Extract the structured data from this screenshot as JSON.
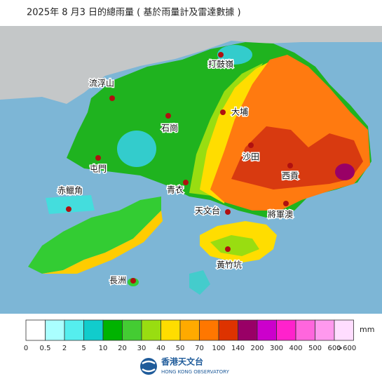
{
  "title": "2025年 8 月3 日的總雨量 ( 基於雨量計及雷達數據 )",
  "stations": [
    "打鼓嶺",
    "流浮山",
    "大埔",
    "石崗",
    "沙田",
    "西貢",
    "屯門",
    "赤鱲角",
    "青衣",
    "天文台",
    "將軍澳",
    "黃竹坑",
    "長洲"
  ],
  "legend": {
    "unit": "mm",
    "ticks": [
      0,
      0.5,
      2,
      5,
      10,
      20,
      30,
      40,
      50,
      70,
      100,
      140,
      200,
      300,
      400,
      500,
      600,
      ">600"
    ],
    "colors": [
      "#ffffff",
      "#aaffff",
      "#55eeee",
      "#11cccc",
      "#00b300",
      "#44cc33",
      "#99dd11",
      "#ffdd00",
      "#ffaa00",
      "#ff7700",
      "#dd3300",
      "#990066",
      "#cc00cc",
      "#ff22cc",
      "#ff66dd",
      "#ff99ee",
      "#ffddff"
    ]
  },
  "logo": {
    "name": "香港天文台",
    "english": "HONG KONG OBSERVATORY"
  }
}
